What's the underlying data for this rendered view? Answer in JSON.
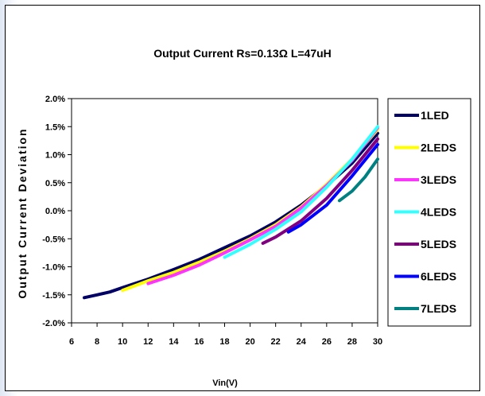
{
  "chart_data": {
    "type": "line",
    "title": "Output Current Rs=0.13Ω L=47uH",
    "xlabel": "Vin(V)",
    "ylabel": "Output Current Deviation",
    "xlim": [
      6,
      30
    ],
    "ylim": [
      -2.0,
      2.0
    ],
    "x_ticks": [
      6,
      8,
      10,
      12,
      14,
      16,
      18,
      20,
      22,
      24,
      26,
      28,
      30
    ],
    "y_ticks": [
      {
        "value": 2.0,
        "label": "2.0%"
      },
      {
        "value": 1.5,
        "label": "1.5%"
      },
      {
        "value": 1.0,
        "label": "1.0%"
      },
      {
        "value": 0.5,
        "label": "0.5%"
      },
      {
        "value": 0.0,
        "label": "0.0%"
      },
      {
        "value": -0.5,
        "label": "-0.5%"
      },
      {
        "value": -1.0,
        "label": "-1.0%"
      },
      {
        "value": -1.5,
        "label": "-1.5%"
      },
      {
        "value": -2.0,
        "label": "-2.0%"
      }
    ],
    "grid": false,
    "legend_position": "right",
    "series": [
      {
        "name": "1LED",
        "color": "#000066",
        "x": [
          7,
          8,
          9,
          10,
          12,
          14,
          16,
          18,
          20,
          22,
          24,
          26,
          28,
          30
        ],
        "y": [
          -1.55,
          -1.5,
          -1.45,
          -1.37,
          -1.22,
          -1.05,
          -0.87,
          -0.66,
          -0.45,
          -0.2,
          0.1,
          0.45,
          0.85,
          1.38
        ]
      },
      {
        "name": "2LEDS",
        "color": "#ffff00",
        "x": [
          10,
          12,
          14,
          16,
          18,
          20,
          22,
          24,
          26,
          28,
          30
        ],
        "y": [
          -1.42,
          -1.25,
          -1.1,
          -0.92,
          -0.72,
          -0.5,
          -0.25,
          0.07,
          0.47,
          0.92,
          1.45
        ]
      },
      {
        "name": "3LEDS",
        "color": "#ff33ff",
        "x": [
          12,
          14,
          16,
          18,
          20,
          22,
          24,
          26,
          28,
          30
        ],
        "y": [
          -1.3,
          -1.15,
          -0.97,
          -0.75,
          -0.52,
          -0.28,
          0.05,
          0.45,
          0.9,
          1.48
        ]
      },
      {
        "name": "4LEDS",
        "color": "#33ffff",
        "x": [
          18,
          20,
          22,
          24,
          26,
          28,
          30
        ],
        "y": [
          -0.83,
          -0.6,
          -0.33,
          -0.02,
          0.42,
          0.92,
          1.5
        ]
      },
      {
        "name": "5LEDS",
        "color": "#800080",
        "x": [
          21,
          22,
          24,
          26,
          28,
          30
        ],
        "y": [
          -0.58,
          -0.47,
          -0.18,
          0.22,
          0.72,
          1.28
        ]
      },
      {
        "name": "6LEDS",
        "color": "#0000ff",
        "x": [
          23,
          24,
          26,
          28,
          30
        ],
        "y": [
          -0.38,
          -0.25,
          0.1,
          0.62,
          1.18
        ]
      },
      {
        "name": "7LEDS",
        "color": "#008080",
        "x": [
          27,
          28,
          29,
          30
        ],
        "y": [
          0.18,
          0.35,
          0.6,
          0.92
        ]
      }
    ]
  }
}
